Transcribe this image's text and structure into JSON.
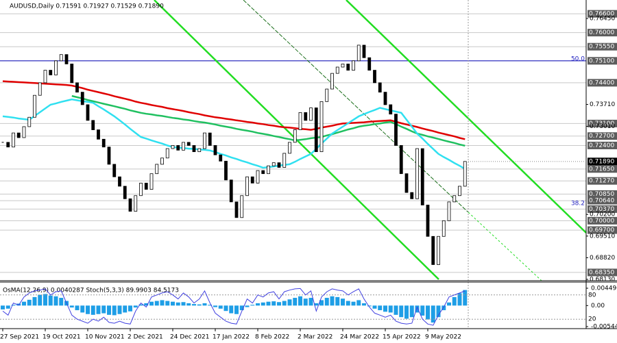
{
  "chart_data": {
    "type": "candlestick",
    "title": "AUDUSD,Daily  0.71591 0.71927 0.71529 0.71890",
    "categories": [
      "27 Sep 2021",
      null,
      null,
      null,
      null,
      null,
      null,
      null,
      "19 Oct 2021",
      null,
      null,
      null,
      null,
      null,
      null,
      null,
      "10 Nov 2021",
      null,
      null,
      null,
      null,
      null,
      null,
      null,
      "2 Dec 2021",
      null,
      null,
      null,
      null,
      null,
      null,
      null,
      "24 Dec 2021",
      null,
      null,
      null,
      null,
      null,
      null,
      null,
      "17 Jan 2022",
      null,
      null,
      null,
      null,
      null,
      null,
      null,
      "8 Feb 2022",
      null,
      null,
      null,
      null,
      null,
      null,
      null,
      "2 Mar 2022",
      null,
      null,
      null,
      null,
      null,
      null,
      null,
      "24 Mar 2022",
      null,
      null,
      null,
      null,
      null,
      null,
      null,
      "15 Apr 2022",
      null,
      null,
      null,
      null,
      null,
      null,
      null,
      "9 May 2022",
      null,
      null,
      null,
      null,
      null,
      null,
      null
    ],
    "close": [
      0.725,
      0.7235,
      0.728,
      0.7265,
      0.73,
      0.733,
      0.74,
      0.744,
      0.748,
      0.7465,
      0.751,
      0.753,
      0.75,
      0.744,
      0.741,
      0.737,
      0.732,
      0.729,
      0.726,
      0.7235,
      0.718,
      0.714,
      0.711,
      0.707,
      0.703,
      0.708,
      0.712,
      0.71,
      0.715,
      0.718,
      0.72,
      0.723,
      0.724,
      0.7225,
      0.725,
      0.724,
      0.722,
      0.723,
      0.728,
      0.724,
      0.721,
      0.719,
      0.713,
      0.706,
      0.701,
      0.708,
      0.714,
      0.712,
      0.716,
      0.715,
      0.7175,
      0.7185,
      0.717,
      0.7215,
      0.725,
      0.729,
      0.7345,
      0.732,
      0.736,
      0.722,
      0.738,
      0.742,
      0.747,
      0.749,
      0.75,
      0.748,
      0.751,
      0.756,
      0.752,
      0.748,
      0.744,
      0.741,
      0.737,
      0.734,
      0.724,
      0.715,
      0.709,
      0.707,
      0.723,
      0.705,
      0.695,
      0.686,
      0.695,
      0.7,
      0.706,
      0.708,
      0.711,
      0.7189
    ],
    "up_color": "#ffffff",
    "down_color": "#000000",
    "series": [
      {
        "color": "#e00000",
        "values": [
          0.7445,
          0.7444,
          0.7443,
          0.7442,
          0.7441,
          0.744,
          0.7439,
          0.7438,
          0.7437,
          0.7436,
          0.7435,
          0.7434,
          0.7433,
          0.7431,
          0.7427,
          0.7423,
          0.7418,
          0.7414,
          0.741,
          0.7406,
          0.7402,
          0.7397,
          0.7393,
          0.7389,
          0.7385,
          0.738,
          0.7376,
          0.7373,
          0.7369,
          0.7366,
          0.7363,
          0.7359,
          0.7356,
          0.7353,
          0.735,
          0.7346,
          0.7343,
          0.734,
          0.7336,
          0.7333,
          0.733,
          0.7328,
          0.7325,
          0.7323,
          0.732,
          0.7318,
          0.7315,
          0.7313,
          0.731,
          0.7308,
          0.7305,
          0.7303,
          0.73,
          0.7298,
          0.7297,
          0.7295,
          0.7293,
          0.7292,
          0.729,
          0.7293,
          0.7297,
          0.73,
          0.7303,
          0.7307,
          0.731,
          0.7311,
          0.7312,
          0.7313,
          0.7314,
          0.7316,
          0.7317,
          0.7318,
          0.7319,
          0.732,
          0.7316,
          0.7311,
          0.7307,
          0.7303,
          0.7299,
          0.7294,
          0.729,
          0.7286,
          0.7281,
          0.7277,
          0.7273,
          0.7269,
          0.7264,
          0.726
        ]
      },
      {
        "color": "#20c060",
        "values": [
          null,
          null,
          null,
          null,
          null,
          null,
          null,
          null,
          null,
          null,
          null,
          null,
          null,
          0.7398,
          0.7394,
          0.739,
          0.7385,
          0.7381,
          0.7377,
          0.7373,
          0.7369,
          0.7365,
          0.7361,
          0.7357,
          0.7352,
          0.7348,
          0.7344,
          0.7341,
          0.7339,
          0.7336,
          0.7334,
          0.7331,
          0.7328,
          0.7326,
          0.7323,
          0.7321,
          0.7318,
          0.7315,
          0.7313,
          0.731,
          0.7307,
          0.7303,
          0.73,
          0.7297,
          0.7293,
          0.729,
          0.7287,
          0.7284,
          0.728,
          0.7277,
          0.7274,
          0.727,
          0.7267,
          0.7263,
          0.726,
          0.7256,
          0.7258,
          0.726,
          0.7263,
          0.7265,
          0.7267,
          0.7272,
          0.7276,
          0.7281,
          0.7286,
          0.7291,
          0.7295,
          0.73,
          0.7303,
          0.7305,
          0.7308,
          0.731,
          0.7313,
          0.7315,
          0.7308,
          0.73,
          0.7293,
          0.7285,
          0.7278,
          0.7274,
          0.7269,
          0.7265,
          0.7261,
          0.7256,
          0.7252,
          0.7248,
          0.7243,
          0.7239
        ]
      },
      {
        "color": "#30e0f0",
        "values": [
          0.7333,
          0.7331,
          0.7329,
          0.7326,
          0.7324,
          0.7322,
          0.7334,
          0.7346,
          0.7358,
          0.737,
          0.7374,
          0.7379,
          0.7383,
          0.7387,
          0.7384,
          0.7381,
          0.7379,
          0.7376,
          0.7365,
          0.7355,
          0.7344,
          0.7333,
          0.732,
          0.7307,
          0.7293,
          0.728,
          0.7267,
          0.7262,
          0.7256,
          0.7251,
          0.7246,
          0.724,
          0.7235,
          0.7233,
          0.7232,
          0.723,
          0.7229,
          0.7227,
          0.7226,
          0.7224,
          0.7219,
          0.7213,
          0.7208,
          0.7202,
          0.7197,
          0.7191,
          0.7186,
          0.718,
          0.7175,
          0.7169,
          0.7171,
          0.7173,
          0.7176,
          0.7178,
          0.718,
          0.7188,
          0.7197,
          0.7205,
          0.7213,
          0.7229,
          0.7246,
          0.7262,
          0.7278,
          0.7289,
          0.73,
          0.7311,
          0.7322,
          0.7333,
          0.734,
          0.7347,
          0.7353,
          0.736,
          0.7356,
          0.7352,
          0.7348,
          0.7344,
          0.7322,
          0.73,
          0.7278,
          0.7262,
          0.7245,
          0.7229,
          0.7213,
          0.7203,
          0.7194,
          0.7184,
          0.7175,
          0.7165
        ]
      }
    ],
    "ylim": [
      0.6813,
      0.7704
    ],
    "yticks": [
      {
        "value": 0.7645,
        "label": "0.76450"
      },
      {
        "value": 0.7371,
        "label": "0.73710"
      },
      {
        "value": 0.7301,
        "label": "0.73010"
      },
      {
        "value": 0.702,
        "label": "0.70200"
      },
      {
        "value": 0.6951,
        "label": "0.69510"
      },
      {
        "value": 0.6882,
        "label": "0.68820"
      },
      {
        "value": 0.6813,
        "label": "0.68130"
      }
    ],
    "levels": [
      {
        "value": 0.766,
        "label": "0.76600"
      },
      {
        "value": 0.76,
        "label": "0.76000"
      },
      {
        "value": 0.7555,
        "label": "0.75550"
      },
      {
        "value": 0.751,
        "label": "0.75100"
      },
      {
        "value": 0.744,
        "label": "0.74400"
      },
      {
        "value": 0.731,
        "label": "0.73100"
      },
      {
        "value": 0.727,
        "label": "0.72700"
      },
      {
        "value": 0.724,
        "label": "0.72400"
      },
      {
        "value": 0.7165,
        "label": "0.71650"
      },
      {
        "value": 0.7127,
        "label": "0.71270"
      },
      {
        "value": 0.7085,
        "label": "0.70850"
      },
      {
        "value": 0.7064,
        "label": "0.70640"
      },
      {
        "value": 0.7037,
        "label": "0.70370"
      },
      {
        "value": 0.7,
        "label": "0.70000"
      },
      {
        "value": 0.697,
        "label": "0.69700"
      },
      {
        "value": 0.6835,
        "label": "0.68350"
      }
    ],
    "level_color": "#5c5c5c",
    "current": {
      "value": 0.7189,
      "label": "0.71890"
    },
    "fib": [
      {
        "value": 0.751,
        "label": "50.0"
      },
      {
        "value": 0.7049,
        "label": "38.2"
      }
    ],
    "fib_color": "#2020c0",
    "indicator_title": "OsMA(12,26,9) 0.0040287 Stoch(5,3,3) 89.9903 84.5173",
    "osma": [
      -0.001,
      -0.0008,
      0.0002,
      0.0005,
      0.001,
      0.0015,
      0.0022,
      0.0028,
      0.003,
      0.0026,
      0.0024,
      0.002,
      0.0012,
      -0.0005,
      -0.0012,
      -0.0018,
      -0.0022,
      -0.0024,
      -0.0022,
      -0.002,
      -0.0024,
      -0.0025,
      -0.0022,
      -0.0018,
      -0.0015,
      -0.0005,
      0.0003,
      0.0006,
      0.001,
      0.0012,
      0.0014,
      0.0012,
      0.001,
      0.0008,
      0.0009,
      0.0006,
      0.0004,
      0.0003,
      0.0006,
      0.0002,
      -0.0004,
      -0.0008,
      -0.0014,
      -0.002,
      -0.0022,
      -0.0012,
      -0.0004,
      0.0002,
      0.0006,
      0.0008,
      0.001,
      0.0011,
      0.0009,
      0.0012,
      0.0016,
      0.002,
      0.0024,
      0.0018,
      0.002,
      0.0006,
      0.0014,
      0.002,
      0.0024,
      0.0022,
      0.0018,
      0.0012,
      0.001,
      0.0014,
      0.0006,
      -0.0002,
      -0.0008,
      -0.0012,
      -0.0016,
      -0.0018,
      -0.0024,
      -0.003,
      -0.0034,
      -0.003,
      -0.0018,
      -0.0026,
      -0.0036,
      -0.0044,
      -0.003,
      -0.0012,
      0.0008,
      0.0022,
      0.0032,
      0.0040287
    ],
    "osma_color": "#1e9ee6",
    "osma_ylim": [
      -0.005442,
      0.00449
    ],
    "osma_ticks": [
      {
        "value": 0.00449,
        "label": "0.004490"
      },
      {
        "value": 0,
        "label": "0.00"
      },
      -0.005442
    ],
    "stoch": [
      40,
      30,
      60,
      55,
      75,
      85,
      90,
      92,
      95,
      80,
      88,
      90,
      60,
      30,
      20,
      15,
      10,
      20,
      15,
      25,
      12,
      10,
      15,
      10,
      8,
      40,
      60,
      50,
      75,
      80,
      85,
      88,
      80,
      70,
      85,
      75,
      60,
      70,
      90,
      60,
      35,
      25,
      15,
      10,
      8,
      40,
      70,
      60,
      80,
      75,
      85,
      88,
      70,
      88,
      92,
      95,
      96,
      80,
      90,
      40,
      75,
      88,
      95,
      92,
      90,
      80,
      88,
      95,
      70,
      50,
      35,
      30,
      25,
      30,
      15,
      10,
      8,
      10,
      50,
      20,
      8,
      5,
      30,
      50,
      75,
      80,
      85,
      89.9903
    ],
    "stoch_color": "#4040e0",
    "stoch_ylim": [
      0,
      100
    ],
    "stoch_ticks": [
      80,
      20
    ]
  }
}
